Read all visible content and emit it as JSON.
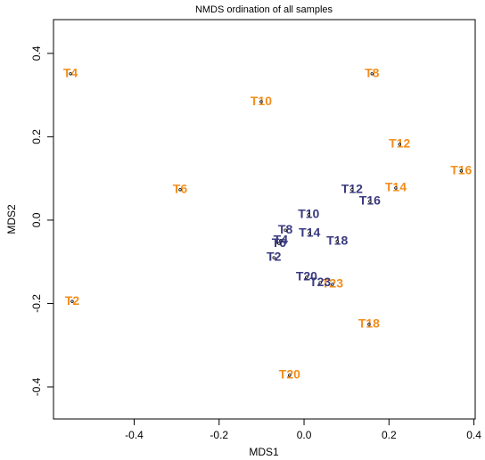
{
  "chart_data": {
    "type": "scatter",
    "title": "NMDS ordination of all samples",
    "x_label": "MDS1",
    "y_label": "MDS2",
    "xlim": [
      -0.59,
      0.403
    ],
    "ylim": [
      -0.477,
      0.481
    ],
    "xticks": [
      -0.4,
      -0.2,
      {
        "value": 0,
        "label": "0.0"
      },
      0.2,
      0.4
    ],
    "yticks": [
      -0.4,
      -0.2,
      {
        "value": 0,
        "label": "0.0"
      },
      0.2,
      0.4
    ],
    "series": [
      {
        "color": "#f28e1c",
        "labels": [
          "T4",
          "T8",
          "T10",
          "T12",
          "T16",
          "T14",
          "T6",
          "T2",
          "T23",
          "T18",
          "T20"
        ],
        "x": [
          -0.55,
          0.16,
          -0.101,
          0.225,
          0.37,
          0.216,
          -0.292,
          -0.546,
          0.067,
          0.153,
          -0.034
        ],
        "values": [
          0.351,
          0.351,
          0.284,
          0.182,
          0.118,
          0.077,
          0.073,
          -0.195,
          -0.154,
          -0.25,
          -0.372
        ]
      },
      {
        "color": "#3a3a80",
        "labels": [
          "T10",
          "T12",
          "T16",
          "T14",
          "T18",
          "T8",
          "T4",
          "T6",
          "T2",
          "T20",
          "T23"
        ],
        "x": [
          0.011,
          0.113,
          0.155,
          0.013,
          0.078,
          -0.044,
          -0.055,
          -0.059,
          -0.071,
          0.006,
          0.038
        ],
        "values": [
          0.013,
          0.073,
          0.045,
          -0.032,
          -0.051,
          -0.024,
          -0.049,
          -0.056,
          -0.09,
          -0.137,
          -0.15
        ]
      }
    ]
  }
}
